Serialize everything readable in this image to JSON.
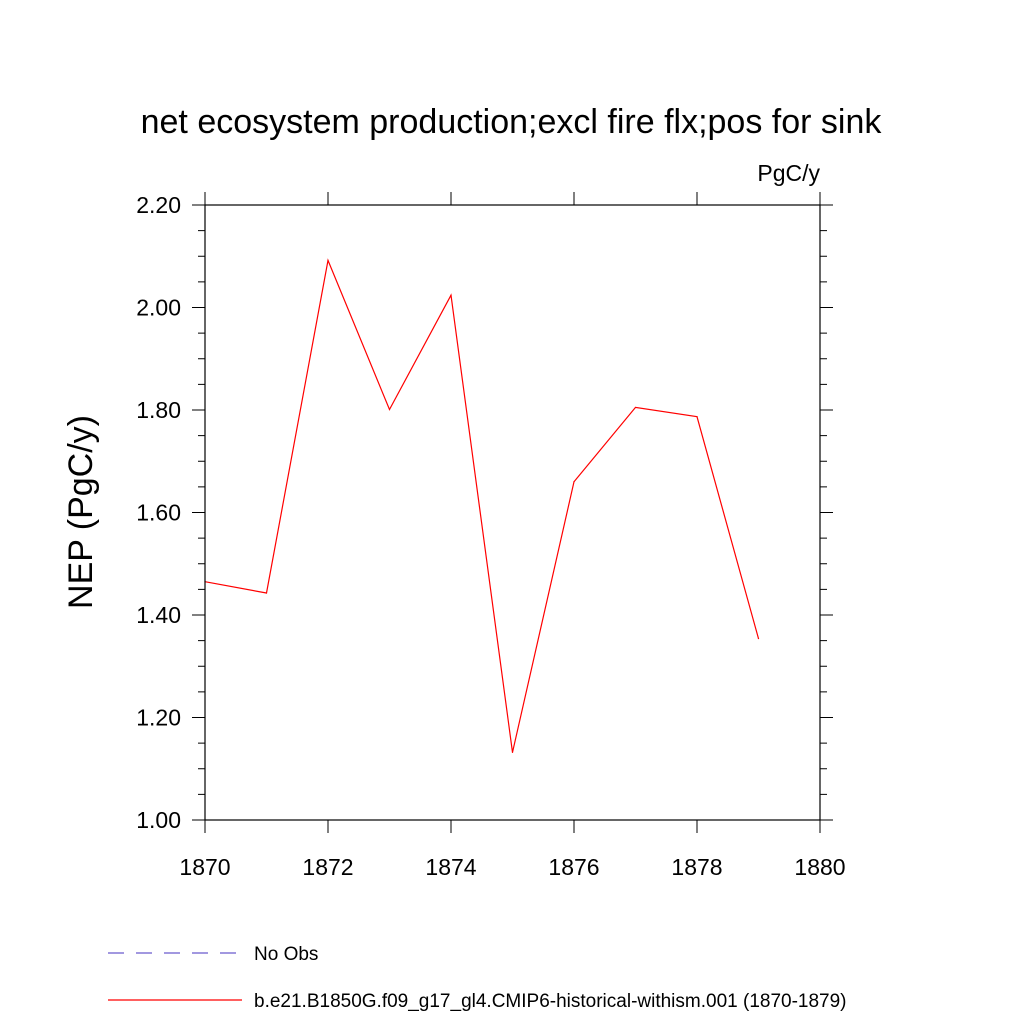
{
  "chart_data": {
    "type": "line",
    "title": "net ecosystem production;excl fire flx;pos for sink",
    "units": "PgC/y",
    "ylabel": "NEP  (PgC/y)",
    "xlabel": "",
    "xlim": [
      1870,
      1880
    ],
    "ylim": [
      1.0,
      2.2
    ],
    "x_ticks": [
      1870,
      1872,
      1874,
      1876,
      1878,
      1880
    ],
    "x_tick_labels": [
      "1870",
      "1872",
      "1874",
      "1876",
      "1878",
      "1880"
    ],
    "y_ticks": [
      1.0,
      1.2,
      1.4,
      1.6,
      1.8,
      2.0,
      2.2
    ],
    "y_tick_labels": [
      "1.00",
      "1.20",
      "1.40",
      "1.60",
      "1.80",
      "2.00",
      "2.20"
    ],
    "grid": false,
    "legend_position": "bottom",
    "series": [
      {
        "name": "b.e21.B1850G.f09_g17_gl4.CMIP6-historical-withism.001 (1870-1879)",
        "color": "#ff0000",
        "style": "solid",
        "x": [
          1870,
          1871,
          1872,
          1873,
          1874,
          1875,
          1876,
          1877,
          1878,
          1879
        ],
        "y": [
          1.465,
          1.443,
          2.092,
          1.801,
          2.024,
          1.132,
          1.66,
          1.805,
          1.787,
          1.354
        ]
      }
    ],
    "legend": [
      {
        "label": "No Obs",
        "color": "#6a5acd",
        "style": "dashed"
      },
      {
        "label": "b.e21.B1850G.f09_g17_gl4.CMIP6-historical-withism.001 (1870-1879)",
        "color": "#ff0000",
        "style": "solid"
      }
    ]
  }
}
